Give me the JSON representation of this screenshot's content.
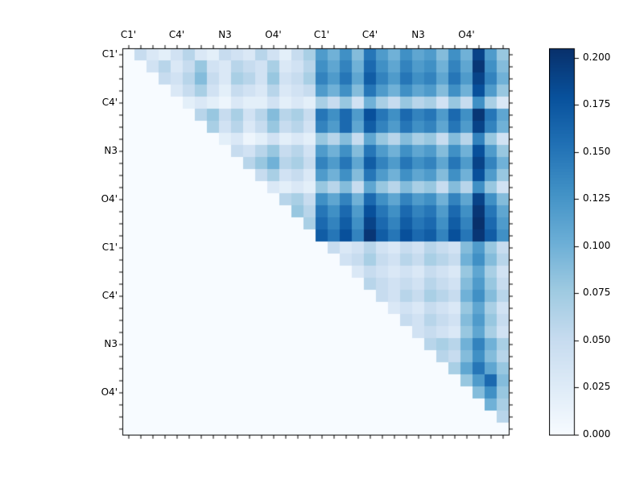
{
  "figure": {
    "background": "#ffffff"
  },
  "chart_data": {
    "type": "heatmap",
    "title": "",
    "xlabel": "",
    "ylabel": "",
    "n": 32,
    "group_size": 4,
    "x_tick_labels": [
      "C1'",
      "C4'",
      "N3",
      "O4'",
      "C1'",
      "C4'",
      "N3",
      "O4'"
    ],
    "y_tick_labels": [
      "C1'",
      "C4'",
      "N3",
      "O4'",
      "C1'",
      "C4'",
      "N3",
      "O4'"
    ],
    "matrix_format": "upper_triangle_rows",
    "lower_triangle_value": 0,
    "rows": [
      [
        0.05,
        0.03,
        0.02,
        0.04,
        0.06,
        0.03,
        0.02,
        0.05,
        0.04,
        0.03,
        0.06,
        0.04,
        0.02,
        0.05,
        0.07,
        0.12,
        0.1,
        0.13,
        0.09,
        0.15,
        0.12,
        0.1,
        0.13,
        0.11,
        0.12,
        0.09,
        0.13,
        0.1,
        0.19,
        0.12,
        0.08
      ],
      [
        0.04,
        0.06,
        0.03,
        0.05,
        0.08,
        0.04,
        0.03,
        0.06,
        0.05,
        0.04,
        0.07,
        0.03,
        0.04,
        0.06,
        0.13,
        0.11,
        0.14,
        0.1,
        0.16,
        0.13,
        0.11,
        0.14,
        0.12,
        0.13,
        0.1,
        0.14,
        0.11,
        0.2,
        0.13,
        0.09
      ],
      [
        0.05,
        0.04,
        0.06,
        0.09,
        0.05,
        0.03,
        0.07,
        0.06,
        0.04,
        0.08,
        0.04,
        0.05,
        0.07,
        0.14,
        0.12,
        0.15,
        0.11,
        0.17,
        0.14,
        0.12,
        0.15,
        0.13,
        0.14,
        0.11,
        0.15,
        0.12,
        0.19,
        0.14,
        0.1
      ],
      [
        0.03,
        0.05,
        0.07,
        0.04,
        0.02,
        0.05,
        0.04,
        0.03,
        0.06,
        0.03,
        0.04,
        0.05,
        0.12,
        0.1,
        0.13,
        0.09,
        0.15,
        0.12,
        0.1,
        0.13,
        0.11,
        0.12,
        0.09,
        0.13,
        0.1,
        0.18,
        0.12,
        0.08
      ],
      [
        0.02,
        0.03,
        0.02,
        0.01,
        0.03,
        0.02,
        0.02,
        0.04,
        0.02,
        0.03,
        0.02,
        0.07,
        0.05,
        0.08,
        0.04,
        0.1,
        0.07,
        0.05,
        0.08,
        0.06,
        0.07,
        0.04,
        0.08,
        0.05,
        0.13,
        0.07,
        0.03
      ],
      [
        0.06,
        0.08,
        0.05,
        0.07,
        0.04,
        0.06,
        0.09,
        0.06,
        0.07,
        0.05,
        0.15,
        0.13,
        0.16,
        0.12,
        0.18,
        0.15,
        0.13,
        0.16,
        0.14,
        0.15,
        0.12,
        0.16,
        0.13,
        0.2,
        0.15,
        0.11
      ],
      [
        0.07,
        0.04,
        0.06,
        0.03,
        0.05,
        0.08,
        0.05,
        0.06,
        0.04,
        0.14,
        0.12,
        0.16,
        0.11,
        0.17,
        0.14,
        0.12,
        0.15,
        0.13,
        0.14,
        0.11,
        0.15,
        0.12,
        0.19,
        0.14,
        0.1
      ],
      [
        0.02,
        0.03,
        0.01,
        0.02,
        0.04,
        0.02,
        0.03,
        0.02,
        0.08,
        0.06,
        0.09,
        0.05,
        0.11,
        0.08,
        0.06,
        0.09,
        0.07,
        0.08,
        0.05,
        0.09,
        0.06,
        0.14,
        0.08,
        0.04
      ],
      [
        0.05,
        0.04,
        0.06,
        0.08,
        0.05,
        0.06,
        0.04,
        0.12,
        0.1,
        0.13,
        0.09,
        0.15,
        0.12,
        0.1,
        0.13,
        0.11,
        0.12,
        0.09,
        0.13,
        0.1,
        0.18,
        0.12,
        0.08
      ],
      [
        0.06,
        0.08,
        0.1,
        0.06,
        0.07,
        0.05,
        0.14,
        0.12,
        0.15,
        0.11,
        0.17,
        0.14,
        0.12,
        0.15,
        0.13,
        0.14,
        0.11,
        0.15,
        0.12,
        0.19,
        0.14,
        0.1
      ],
      [
        0.05,
        0.07,
        0.04,
        0.05,
        0.03,
        0.12,
        0.1,
        0.13,
        0.09,
        0.15,
        0.12,
        0.1,
        0.13,
        0.11,
        0.12,
        0.09,
        0.13,
        0.1,
        0.18,
        0.12,
        0.08
      ],
      [
        0.03,
        0.02,
        0.03,
        0.02,
        0.08,
        0.06,
        0.09,
        0.05,
        0.11,
        0.08,
        0.06,
        0.09,
        0.07,
        0.08,
        0.05,
        0.09,
        0.06,
        0.13,
        0.08,
        0.04
      ],
      [
        0.06,
        0.07,
        0.05,
        0.13,
        0.11,
        0.14,
        0.1,
        0.16,
        0.13,
        0.11,
        0.14,
        0.12,
        0.13,
        0.1,
        0.14,
        0.11,
        0.19,
        0.13,
        0.09
      ],
      [
        0.08,
        0.06,
        0.15,
        0.13,
        0.16,
        0.12,
        0.18,
        0.15,
        0.13,
        0.16,
        0.14,
        0.15,
        0.12,
        0.16,
        0.13,
        0.2,
        0.15,
        0.11
      ],
      [
        0.07,
        0.16,
        0.14,
        0.17,
        0.13,
        0.19,
        0.16,
        0.14,
        0.17,
        0.15,
        0.16,
        0.13,
        0.17,
        0.14,
        0.21,
        0.16,
        0.12
      ],
      [
        0.17,
        0.15,
        0.18,
        0.14,
        0.2,
        0.17,
        0.15,
        0.18,
        0.16,
        0.17,
        0.14,
        0.18,
        0.15,
        0.2,
        0.17,
        0.13
      ],
      [
        0.05,
        0.03,
        0.04,
        0.06,
        0.04,
        0.03,
        0.05,
        0.04,
        0.06,
        0.05,
        0.04,
        0.09,
        0.12,
        0.08,
        0.05
      ],
      [
        0.04,
        0.05,
        0.07,
        0.05,
        0.04,
        0.06,
        0.05,
        0.07,
        0.06,
        0.05,
        0.1,
        0.13,
        0.09,
        0.06
      ],
      [
        0.03,
        0.05,
        0.04,
        0.03,
        0.04,
        0.03,
        0.05,
        0.04,
        0.03,
        0.08,
        0.11,
        0.07,
        0.04
      ],
      [
        0.06,
        0.05,
        0.04,
        0.05,
        0.04,
        0.06,
        0.05,
        0.04,
        0.09,
        0.12,
        0.08,
        0.05
      ],
      [
        0.05,
        0.04,
        0.06,
        0.05,
        0.07,
        0.06,
        0.05,
        0.1,
        0.13,
        0.09,
        0.06
      ],
      [
        0.03,
        0.04,
        0.03,
        0.05,
        0.04,
        0.03,
        0.08,
        0.11,
        0.07,
        0.04
      ],
      [
        0.05,
        0.04,
        0.06,
        0.05,
        0.04,
        0.09,
        0.12,
        0.08,
        0.05
      ],
      [
        0.04,
        0.05,
        0.04,
        0.03,
        0.08,
        0.11,
        0.07,
        0.04
      ],
      [
        0.06,
        0.07,
        0.06,
        0.1,
        0.14,
        0.1,
        0.07
      ],
      [
        0.06,
        0.05,
        0.09,
        0.13,
        0.09,
        0.06
      ],
      [
        0.07,
        0.11,
        0.15,
        0.11,
        0.08
      ],
      [
        0.08,
        0.12,
        0.16,
        0.09
      ],
      [
        0.09,
        0.13,
        0.08
      ],
      [
        0.1,
        0.07
      ],
      [
        0.06
      ],
      []
    ],
    "vmin": 0,
    "vmax": 0.205,
    "colormap": {
      "name": "Blues",
      "stops": [
        [
          0.0,
          "#f7fbff"
        ],
        [
          0.125,
          "#deebf7"
        ],
        [
          0.25,
          "#c6dbef"
        ],
        [
          0.375,
          "#9ecae1"
        ],
        [
          0.5,
          "#6baed6"
        ],
        [
          0.625,
          "#4292c6"
        ],
        [
          0.75,
          "#2171b5"
        ],
        [
          0.875,
          "#08519c"
        ],
        [
          1.0,
          "#08306b"
        ]
      ]
    },
    "colorbar": {
      "tick_labels": [
        "0.000",
        "0.025",
        "0.050",
        "0.075",
        "0.100",
        "0.125",
        "0.150",
        "0.175",
        "0.200"
      ],
      "tick_values": [
        0,
        0.025,
        0.05,
        0.075,
        0.1,
        0.125,
        0.15,
        0.175,
        0.2
      ]
    },
    "layout": {
      "grid": false,
      "legend": "none",
      "colorbar_position": "right",
      "x_labels_position": "top",
      "y_labels_position": "left"
    }
  }
}
